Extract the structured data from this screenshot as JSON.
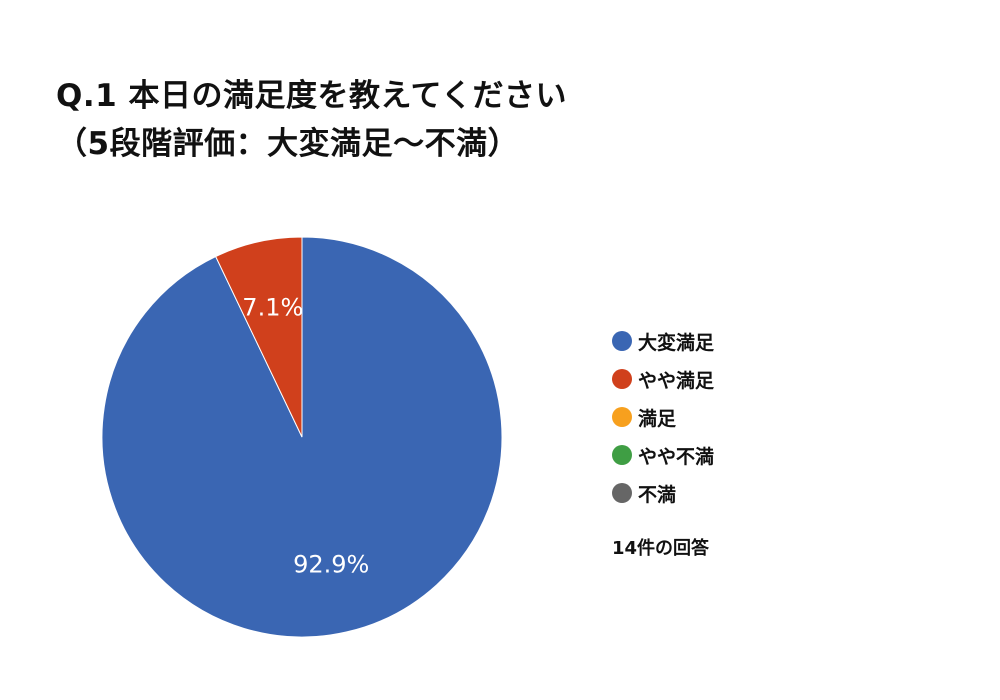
{
  "title": {
    "line1": "Q.1 本日の満足度を教えてください",
    "line2": "（5段階評価：大変満足〜不満）"
  },
  "chart_data": {
    "type": "pie",
    "slices": [
      {
        "label": "大変満足",
        "value": 92.9,
        "display": "92.9%",
        "color": "#3a66b3"
      },
      {
        "label": "やや満足",
        "value": 7.1,
        "display": "7.1%",
        "color": "#d0401c"
      },
      {
        "label": "満足",
        "value": 0,
        "display": "",
        "color": "#f7a01e"
      },
      {
        "label": "やや不満",
        "value": 0,
        "display": "",
        "color": "#3f9e44"
      },
      {
        "label": "不満",
        "value": 0,
        "display": "",
        "color": "#666666"
      }
    ],
    "legend_position": "right",
    "start": "top",
    "direction": "clockwise"
  },
  "response_count": "14件の回答"
}
